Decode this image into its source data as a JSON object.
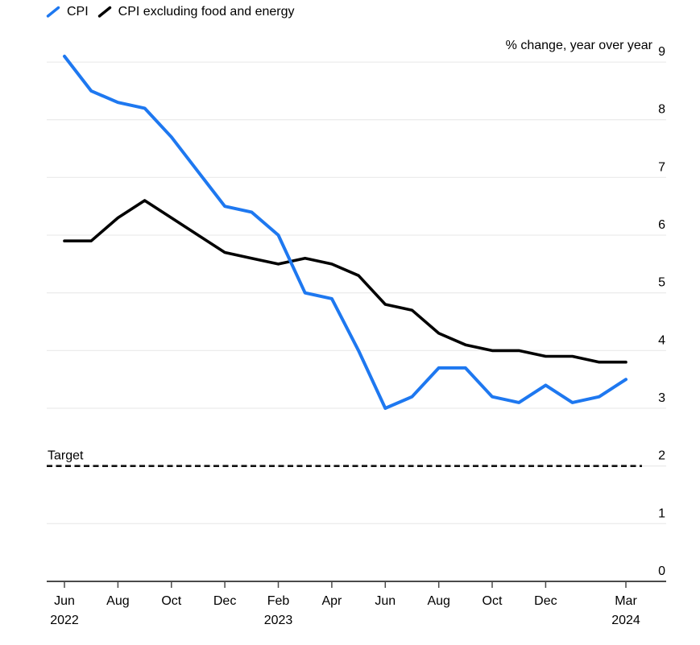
{
  "legend": {
    "items": [
      {
        "label": "CPI",
        "color": "#1e78f0"
      },
      {
        "label": "CPI excluding food and energy",
        "color": "#000000"
      }
    ]
  },
  "chart_data": {
    "type": "line",
    "unit_label": "% change, year over year",
    "x": [
      "Jun 2022",
      "Jul 2022",
      "Aug 2022",
      "Sep 2022",
      "Oct 2022",
      "Nov 2022",
      "Dec 2022",
      "Jan 2023",
      "Feb 2023",
      "Mar 2023",
      "Apr 2023",
      "May 2023",
      "Jun 2023",
      "Jul 2023",
      "Aug 2023",
      "Sep 2023",
      "Oct 2023",
      "Nov 2023",
      "Dec 2023",
      "Jan 2024",
      "Feb 2024",
      "Mar 2024"
    ],
    "series": [
      {
        "name": "CPI",
        "color": "#1e78f0",
        "values": [
          9.1,
          8.5,
          8.3,
          8.2,
          7.7,
          7.1,
          6.5,
          6.4,
          6.0,
          5.0,
          4.9,
          4.0,
          3.0,
          3.2,
          3.7,
          3.7,
          3.2,
          3.1,
          3.4,
          3.1,
          3.2,
          3.5
        ]
      },
      {
        "name": "CPI excluding food and energy",
        "color": "#000000",
        "values": [
          5.9,
          5.9,
          6.3,
          6.6,
          6.3,
          6.0,
          5.7,
          5.6,
          5.5,
          5.6,
          5.5,
          5.3,
          4.8,
          4.7,
          4.3,
          4.1,
          4.0,
          4.0,
          3.9,
          3.9,
          3.8,
          3.8
        ]
      }
    ],
    "target": {
      "label": "Target",
      "value": 2
    },
    "ylim": [
      0,
      9
    ],
    "y_ticks": [
      0,
      1,
      2,
      3,
      4,
      5,
      6,
      7,
      8,
      9
    ],
    "x_ticks": [
      {
        "i": 0,
        "label": "Jun",
        "year": "2022"
      },
      {
        "i": 2,
        "label": "Aug"
      },
      {
        "i": 4,
        "label": "Oct"
      },
      {
        "i": 6,
        "label": "Dec"
      },
      {
        "i": 8,
        "label": "Feb",
        "year": "2023"
      },
      {
        "i": 10,
        "label": "Apr"
      },
      {
        "i": 12,
        "label": "Jun"
      },
      {
        "i": 14,
        "label": "Aug"
      },
      {
        "i": 16,
        "label": "Oct"
      },
      {
        "i": 18,
        "label": "Dec"
      },
      {
        "i": 21,
        "label": "Mar",
        "year": "2024"
      }
    ],
    "grid": true,
    "legend_position": "top-left"
  },
  "colors": {
    "cpi_blue": "#1e78f0",
    "core_black": "#000000",
    "grid": "#ececec",
    "axis": "#4a4a4a",
    "target_dash": "#111111"
  }
}
